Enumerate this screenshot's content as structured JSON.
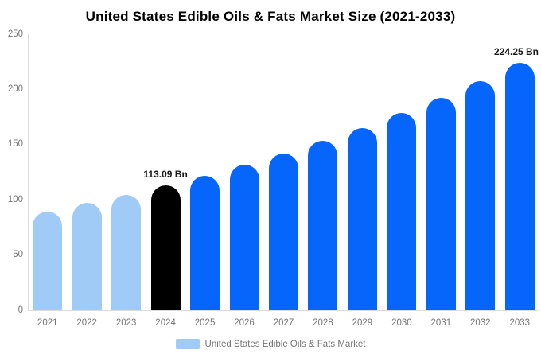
{
  "title": "United States Edible Oils & Fats Market Size (2021-2033)",
  "chart_data": {
    "type": "bar",
    "title": "United States Edible Oils & Fats Market Size (2021-2033)",
    "categories": [
      "2021",
      "2022",
      "2023",
      "2024",
      "2025",
      "2026",
      "2027",
      "2028",
      "2029",
      "2030",
      "2031",
      "2032",
      "2033"
    ],
    "values": [
      89.6,
      97.1,
      104.8,
      113.09,
      122.0,
      131.6,
      142.0,
      153.2,
      165.3,
      178.4,
      192.5,
      207.8,
      224.25
    ],
    "unit": "Bn",
    "segments": [
      "historical",
      "historical",
      "historical",
      "highlight",
      "forecast",
      "forecast",
      "forecast",
      "forecast",
      "forecast",
      "forecast",
      "forecast",
      "forecast",
      "forecast"
    ],
    "colors": {
      "historical": "#A1CBF7",
      "highlight": "#000000",
      "forecast": "#0666FB"
    },
    "data_labels": [
      {
        "category": "2024",
        "text": "113.09 Bn"
      },
      {
        "category": "2033",
        "text": "224.25 Bn"
      }
    ],
    "xlabel": "",
    "ylabel": "",
    "ylim": [
      0,
      250
    ],
    "yticks": [
      0,
      50,
      100,
      150,
      200,
      250
    ],
    "grid": false,
    "legend_position": "bottom",
    "axis_line_color": "#dcdcdc",
    "tick_label_color": "#757575",
    "legend": {
      "swatch_color": "#A1CBF7",
      "label": "United States Edible Oils & Fats Market"
    }
  }
}
